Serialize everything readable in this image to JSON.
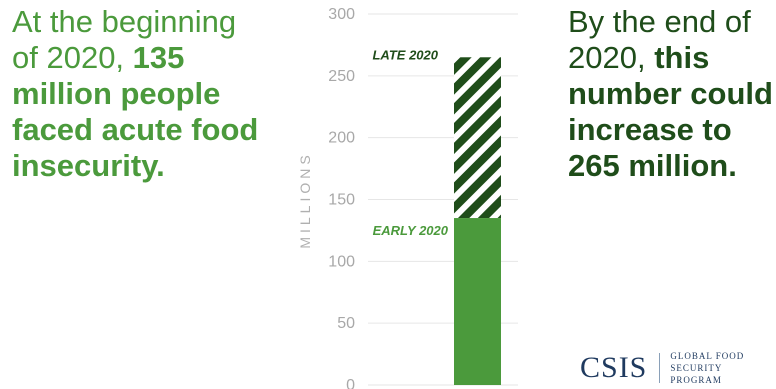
{
  "left_text": {
    "part1": "At the beginning of 2020,",
    "part2": "135 million people faced acute food insecurity."
  },
  "right_text": {
    "part1": "By the end of 2020,",
    "part2": "this number could increase to 265 million."
  },
  "chart_data": {
    "type": "bar",
    "title": "",
    "ylabel": "MILLIONS",
    "ylim": [
      0,
      300
    ],
    "yticks": [
      0,
      50,
      100,
      150,
      200,
      250,
      300
    ],
    "grid": true,
    "series": [
      {
        "name": "EARLY 2020",
        "value": 135,
        "color": "#4b9a3c",
        "pattern": "solid"
      },
      {
        "name": "LATE 2020",
        "value": 265,
        "color": "#1f4d1a",
        "pattern": "diagonal-stripes"
      }
    ]
  },
  "footer": {
    "logo_text": "CSIS",
    "program_line1": "GLOBAL FOOD",
    "program_line2": "SECURITY PROGRAM"
  }
}
